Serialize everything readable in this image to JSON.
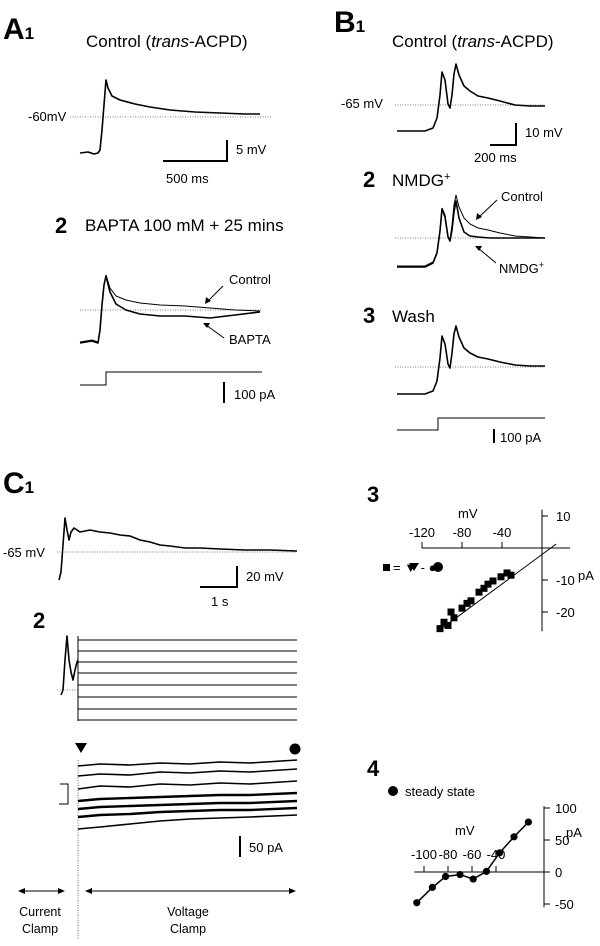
{
  "panelA": {
    "label": "A",
    "sub1": "1",
    "title1_pre": "Control (",
    "title1_it": "trans",
    "title1_post": "-ACPD)",
    "vm": "-60mV",
    "scale_mv": "5 mV",
    "scale_ms": "500 ms",
    "num2": "2",
    "title2": "BAPTA 100 mM + 25 mins",
    "label_control": "Control",
    "label_bapta": "BAPTA",
    "scale_pa": "100 pA"
  },
  "panelB": {
    "label": "B",
    "sub1": "1",
    "title1_pre": "Control (",
    "title1_it": "trans",
    "title1_post": "-ACPD)",
    "vm": "-65 mV",
    "scale_mv": "10 mV",
    "scale_ms": "200 ms",
    "num2": "2",
    "title2": "NMDG",
    "title2_sup": "+",
    "label_control": "Control",
    "label_nmdg": "NMDG",
    "label_nmdg_sup": "+",
    "num3": "3",
    "title3": "Wash",
    "scale_pa": "100 pA"
  },
  "panelC": {
    "label": "C",
    "sub1": "1",
    "vm": "-65 mV",
    "scale_mv": "20 mV",
    "scale_s": "1 s",
    "num2": "2",
    "scale_pa": "50 pA",
    "current_clamp": [
      "Current",
      "Clamp"
    ],
    "voltage_clamp": [
      "Voltage",
      "Clamp"
    ]
  },
  "chart_data": [
    {
      "type": "scatter",
      "panel": "3",
      "xlabel": "mV",
      "ylabel": "pA",
      "legend": "= ▼ - ●",
      "x_ticks": [
        -120,
        -80,
        -40
      ],
      "y_ticks": [
        10,
        -10,
        -20
      ],
      "xlim": [
        -120,
        10
      ],
      "ylim": [
        -25,
        10
      ],
      "points": [
        [
          -102,
          -25.2
        ],
        [
          -98,
          -23.2
        ],
        [
          -94,
          -24.2
        ],
        [
          -91,
          -20.0
        ],
        [
          -88,
          -21.8
        ],
        [
          -80,
          -18.8
        ],
        [
          -75,
          -17.3
        ],
        [
          -71,
          -16.5
        ],
        [
          -63,
          -13.8
        ],
        [
          -58,
          -12.6
        ],
        [
          -54,
          -11.3
        ],
        [
          -49,
          -10.3
        ],
        [
          -41,
          -9.0
        ],
        [
          -35,
          -7.8
        ],
        [
          -31,
          -8.5
        ]
      ],
      "fit_line": [
        [
          -104,
          -26.0
        ],
        [
          14,
          1.2
        ]
      ]
    },
    {
      "type": "line",
      "panel": "4",
      "xlabel": "mV",
      "ylabel": "pA",
      "legend": "steady state",
      "x_ticks": [
        -100,
        -80,
        -60,
        -40
      ],
      "y_ticks": [
        100,
        50,
        0,
        -50
      ],
      "xlim": [
        -100,
        0
      ],
      "ylim": [
        -50,
        100
      ],
      "points": [
        [
          -106,
          -48
        ],
        [
          -93,
          -24
        ],
        [
          -82,
          -7
        ],
        [
          -70,
          -4
        ],
        [
          -59,
          -11
        ],
        [
          -48,
          1
        ],
        [
          -37,
          30
        ],
        [
          -25,
          55
        ],
        [
          -13,
          78
        ]
      ]
    }
  ]
}
